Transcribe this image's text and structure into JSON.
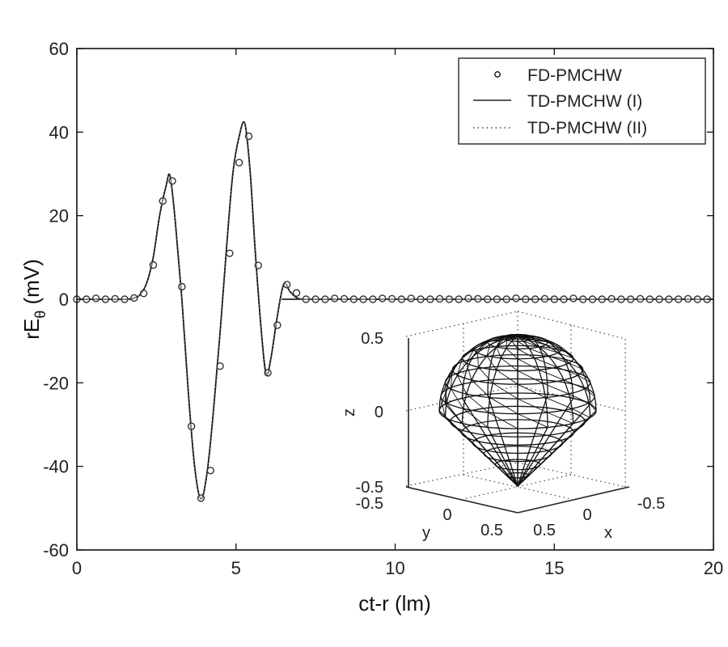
{
  "chart_data": {
    "type": "line",
    "title": "",
    "xlabel": "ct-r (lm)",
    "ylabel": "rE_θ (mV)",
    "ylabel_main": "rE",
    "ylabel_sub": "θ",
    "ylabel_unit": " (mV)",
    "xlim": [
      0,
      20
    ],
    "ylim": [
      -60,
      60
    ],
    "xticks": [
      0,
      5,
      10,
      15,
      20
    ],
    "yticks": [
      -60,
      -40,
      -20,
      0,
      20,
      40,
      60
    ],
    "grid": false,
    "legend_position": "upper right",
    "legend": [
      "FD-PMCHW",
      "TD-PMCHW (I)",
      "TD-PMCHW (II)"
    ],
    "series": [
      {
        "name": "TD-PMCHW (I)",
        "style": "solid",
        "x": [
          0,
          1.5,
          1.8,
          2.0,
          2.2,
          2.4,
          2.6,
          2.8,
          2.93,
          3.1,
          3.3,
          3.5,
          3.7,
          3.9,
          4.1,
          4.3,
          4.5,
          4.7,
          4.9,
          5.1,
          5.28,
          5.45,
          5.6,
          5.8,
          5.95,
          6.1,
          6.3,
          6.5,
          6.7,
          6.9,
          7.1,
          7.5,
          20
        ],
        "y": [
          0,
          0,
          0.3,
          1.2,
          4,
          10,
          20,
          27,
          29.5,
          18,
          0,
          -22,
          -40,
          -47.8,
          -41,
          -26,
          -8,
          12,
          30,
          39,
          42,
          30,
          12,
          -8,
          -18,
          -14,
          -4,
          3.6,
          1.8,
          0.4,
          0,
          0,
          0
        ]
      },
      {
        "name": "TD-PMCHW (II)",
        "style": "dotted",
        "x": [
          0,
          1.5,
          1.8,
          2.0,
          2.2,
          2.4,
          2.6,
          2.8,
          2.93,
          3.1,
          3.3,
          3.5,
          3.7,
          3.9,
          4.1,
          4.3,
          4.5,
          4.7,
          4.9,
          5.1,
          5.28,
          5.45,
          5.6,
          5.8,
          5.95,
          6.1,
          6.3,
          6.5,
          6.7,
          6.9,
          7.1,
          7.5,
          20
        ],
        "y": [
          0,
          0,
          0.3,
          1.2,
          4,
          10,
          20,
          27,
          29.5,
          18,
          0,
          -22,
          -40,
          -47.8,
          -41,
          -26,
          -8,
          12,
          30,
          39,
          42,
          30,
          12,
          -8,
          -18,
          -14,
          -4,
          3.6,
          1.8,
          0.4,
          0,
          0,
          0
        ]
      },
      {
        "name": "FD-PMCHW",
        "style": "markers-circle",
        "x": [
          0,
          0.3,
          0.6,
          0.9,
          1.2,
          1.5,
          1.8,
          2.1,
          2.4,
          2.7,
          3.0,
          3.3,
          3.6,
          3.9,
          4.2,
          4.5,
          4.8,
          5.1,
          5.4,
          5.7,
          6.0,
          6.3,
          6.6,
          6.9,
          7.2,
          7.5,
          7.8,
          8.1,
          8.4,
          8.7,
          9.0,
          9.3,
          9.6,
          9.9,
          10.2,
          10.5,
          10.8,
          11.1,
          11.4,
          11.7,
          12.0,
          12.3,
          12.6,
          12.9,
          13.2,
          13.5,
          13.8,
          14.1,
          14.4,
          14.7,
          15.0,
          15.3,
          15.6,
          15.9,
          16.2,
          16.5,
          16.8,
          17.1,
          17.4,
          17.7,
          18.0,
          18.3,
          18.6,
          18.9,
          19.2,
          19.5,
          19.8
        ],
        "y": [
          0,
          0,
          0.2,
          0,
          0.1,
          0,
          0.3,
          1.4,
          8.2,
          23.5,
          28.3,
          3.0,
          -30.4,
          -47.6,
          -41.0,
          -16.0,
          11.0,
          32.7,
          39.0,
          8.1,
          -17.6,
          -6.2,
          3.5,
          1.5,
          0,
          0,
          0,
          0.2,
          0.1,
          0,
          0,
          0,
          0.2,
          0.1,
          0,
          0.2,
          0,
          0,
          0.1,
          0,
          0,
          0.2,
          0.1,
          0,
          0,
          0,
          0.2,
          0,
          0,
          0.1,
          0,
          0,
          0.2,
          0,
          0,
          0,
          0.1,
          0,
          0,
          0.1,
          0,
          0,
          0,
          0,
          0.1,
          0,
          0
        ]
      }
    ],
    "inset": {
      "type": "3d-surface",
      "description": "wireframe mesh of scatterer: hemispherical top on conical bottom",
      "zlabel": "z",
      "xlabel": "x",
      "ylabel": "y",
      "zticks": [
        "0.5",
        "0",
        "-0.5"
      ],
      "yticks": [
        "-0.5",
        "0",
        "0.5"
      ],
      "xticks": [
        "0.5",
        "0",
        "-0.5"
      ]
    }
  },
  "colors": {
    "background": "#ffffff",
    "axes": "#111111",
    "line": "#111111",
    "marker": "#333333"
  }
}
